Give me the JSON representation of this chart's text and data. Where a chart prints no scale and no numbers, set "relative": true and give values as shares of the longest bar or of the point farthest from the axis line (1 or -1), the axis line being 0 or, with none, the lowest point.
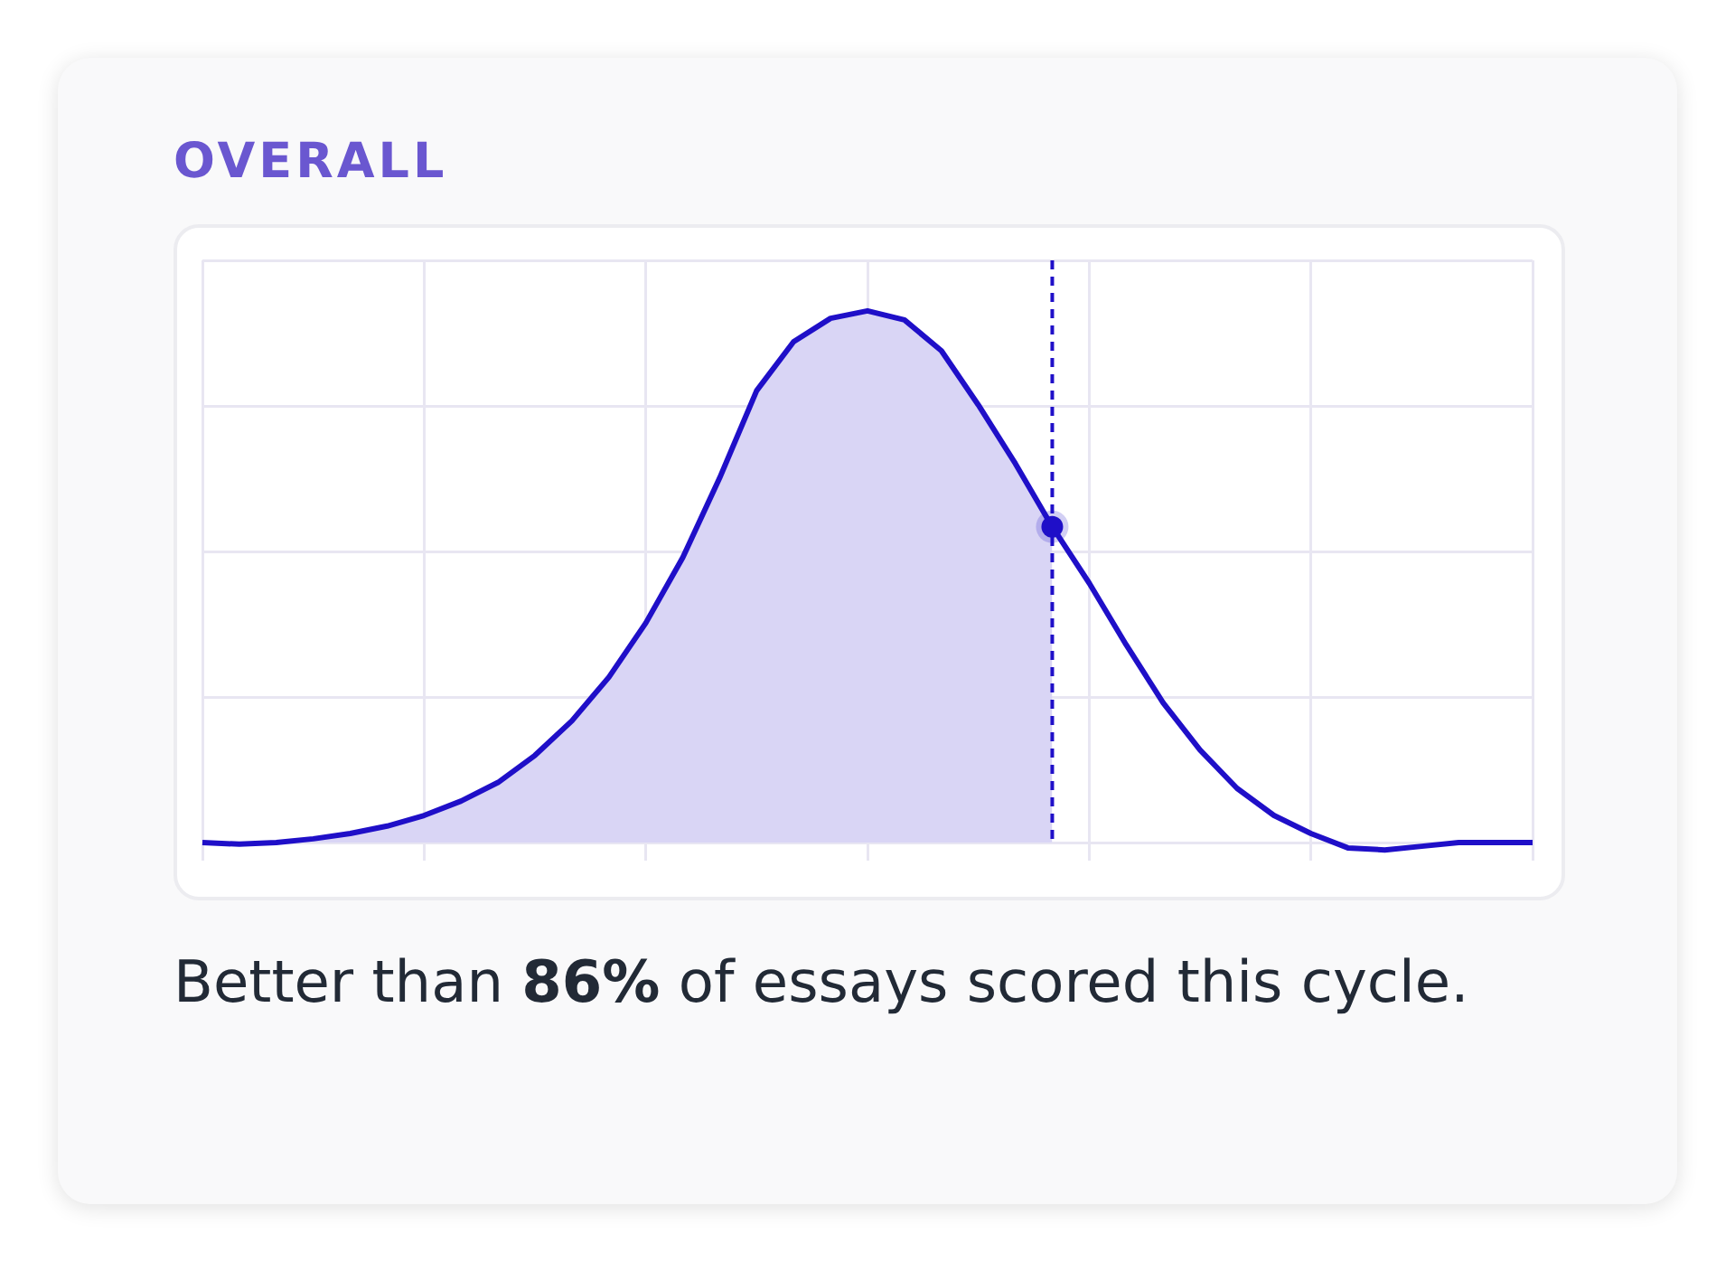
{
  "chart_data": {
    "type": "line",
    "title": "OVERALL",
    "relative": true,
    "grid": true,
    "legend": false,
    "marker": "none",
    "line_style": "solid",
    "categories": [
      null,
      null,
      null,
      null,
      null,
      null,
      null,
      null,
      null,
      null,
      null,
      null,
      null,
      null,
      null,
      null,
      null,
      null,
      null,
      null,
      null,
      null,
      null,
      null,
      null,
      null,
      null,
      null,
      null,
      null,
      null,
      null,
      null,
      null,
      null,
      null,
      null
    ],
    "series": [
      {
        "color": "#1f0fc8",
        "values": [
          0,
          -0.003,
          0,
          0.007,
          0.017,
          0.031,
          0.051,
          0.078,
          0.113,
          0.164,
          0.229,
          0.311,
          0.413,
          0.536,
          0.686,
          0.85,
          0.942,
          0.986,
          1,
          0.983,
          0.925,
          0.823,
          0.713,
          0.594,
          0.488,
          0.372,
          0.263,
          0.174,
          0.102,
          0.051,
          0.017,
          -0.01,
          -0.014,
          -0.007,
          0,
          0,
          0
        ]
      },
      {
        "type": "area",
        "color": "#d9d5f5",
        "line_style": "dashed",
        "values": [
          0,
          -0.003,
          0,
          0.007,
          0.017,
          0.031,
          0.051,
          0.078,
          0.113,
          0.164,
          0.229,
          0.311,
          0.413,
          0.536,
          0.686,
          0.85,
          0.942,
          0.986,
          1,
          0.983,
          0.925,
          0.823,
          0.713,
          0.594,
          null,
          null,
          null,
          null,
          null,
          null,
          null,
          null,
          null,
          null,
          null,
          null,
          null
        ]
      }
    ],
    "annotations": [
      "Better than 86% of essays scored this cycle."
    ]
  }
}
